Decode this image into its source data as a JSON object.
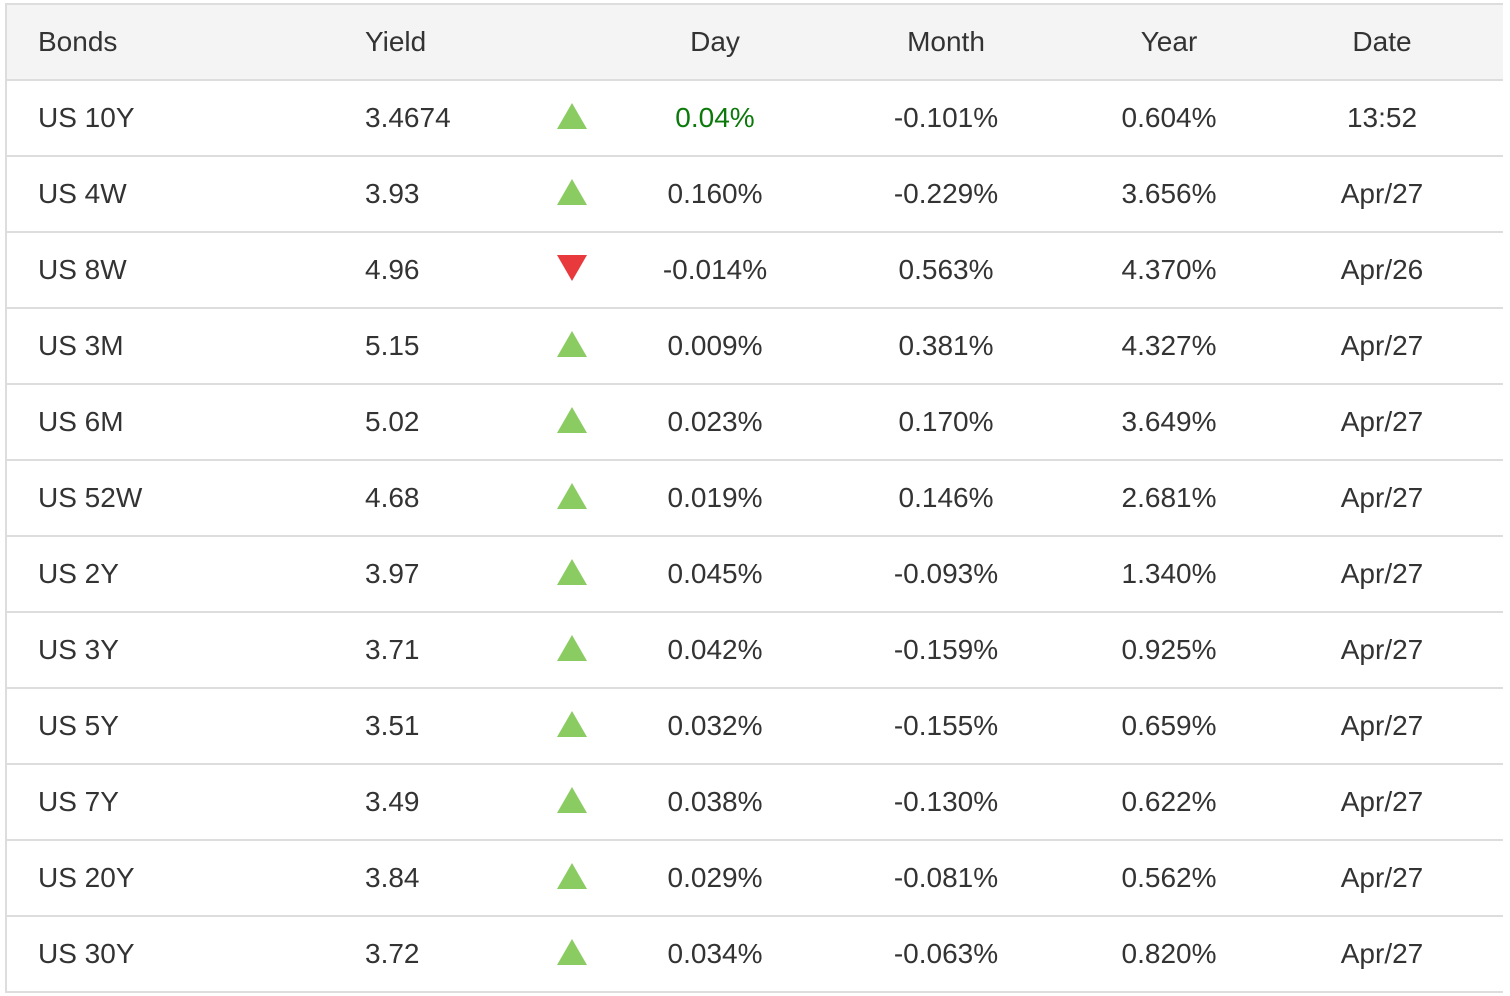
{
  "colors": {
    "up": "#8acb62",
    "down": "#e8393c",
    "highlight": "#0b7a0b"
  },
  "headers": {
    "bonds": "Bonds",
    "yield": "Yield",
    "day": "Day",
    "month": "Month",
    "year": "Year",
    "date": "Date"
  },
  "rows": [
    {
      "bond": "US 10Y",
      "yield": "3.4674",
      "direction": "up",
      "day": "0.04%",
      "month": "-0.101%",
      "year": "0.604%",
      "date": "13:52",
      "highlight": true
    },
    {
      "bond": "US 4W",
      "yield": "3.93",
      "direction": "up",
      "day": "0.160%",
      "month": "-0.229%",
      "year": "3.656%",
      "date": "Apr/27"
    },
    {
      "bond": "US 8W",
      "yield": "4.96",
      "direction": "down",
      "day": "-0.014%",
      "month": "0.563%",
      "year": "4.370%",
      "date": "Apr/26"
    },
    {
      "bond": "US 3M",
      "yield": "5.15",
      "direction": "up",
      "day": "0.009%",
      "month": "0.381%",
      "year": "4.327%",
      "date": "Apr/27"
    },
    {
      "bond": "US 6M",
      "yield": "5.02",
      "direction": "up",
      "day": "0.023%",
      "month": "0.170%",
      "year": "3.649%",
      "date": "Apr/27"
    },
    {
      "bond": "US 52W",
      "yield": "4.68",
      "direction": "up",
      "day": "0.019%",
      "month": "0.146%",
      "year": "2.681%",
      "date": "Apr/27"
    },
    {
      "bond": "US 2Y",
      "yield": "3.97",
      "direction": "up",
      "day": "0.045%",
      "month": "-0.093%",
      "year": "1.340%",
      "date": "Apr/27"
    },
    {
      "bond": "US 3Y",
      "yield": "3.71",
      "direction": "up",
      "day": "0.042%",
      "month": "-0.159%",
      "year": "0.925%",
      "date": "Apr/27"
    },
    {
      "bond": "US 5Y",
      "yield": "3.51",
      "direction": "up",
      "day": "0.032%",
      "month": "-0.155%",
      "year": "0.659%",
      "date": "Apr/27"
    },
    {
      "bond": "US 7Y",
      "yield": "3.49",
      "direction": "up",
      "day": "0.038%",
      "month": "-0.130%",
      "year": "0.622%",
      "date": "Apr/27"
    },
    {
      "bond": "US 20Y",
      "yield": "3.84",
      "direction": "up",
      "day": "0.029%",
      "month": "-0.081%",
      "year": "0.562%",
      "date": "Apr/27"
    },
    {
      "bond": "US 30Y",
      "yield": "3.72",
      "direction": "up",
      "day": "0.034%",
      "month": "-0.063%",
      "year": "0.820%",
      "date": "Apr/27"
    }
  ]
}
